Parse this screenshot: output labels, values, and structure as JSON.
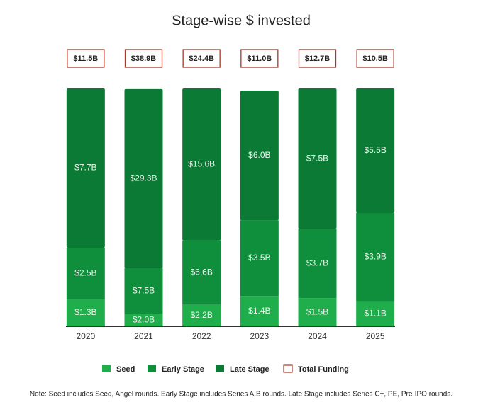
{
  "chart_data": {
    "type": "bar",
    "title": "Stage-wise $ invested",
    "categories": [
      "2020",
      "2021",
      "2022",
      "2023",
      "2024",
      "2025"
    ],
    "stacked": "percent",
    "series": [
      {
        "name": "Seed",
        "color": "#1fae4b",
        "values": [
          1.3,
          2.0,
          2.2,
          1.4,
          1.5,
          1.1
        ],
        "value_labels": [
          "$1.3B",
          "$2.0B",
          "$2.2B",
          "$1.4B",
          "$1.5B",
          "$1.1B"
        ]
      },
      {
        "name": "Early Stage",
        "color": "#0f8f3b",
        "values": [
          2.5,
          7.5,
          6.6,
          3.5,
          3.7,
          3.9
        ],
        "value_labels": [
          "$2.5B",
          "$7.5B",
          "$6.6B",
          "$3.5B",
          "$3.7B",
          "$3.9B"
        ]
      },
      {
        "name": "Late Stage",
        "color": "#0b7a34",
        "values": [
          7.7,
          29.3,
          15.6,
          6.0,
          7.5,
          5.5
        ],
        "value_labels": [
          "$7.7B",
          "$29.3B",
          "$15.6B",
          "$6.0B",
          "$7.5B",
          "$5.5B"
        ]
      }
    ],
    "total": {
      "name": "Total Funding",
      "color": "#a8382c",
      "values": [
        11.5,
        38.9,
        24.4,
        11.0,
        12.7,
        10.5
      ],
      "value_labels": [
        "$11.5B",
        "$38.9B",
        "$24.4B",
        "$11.0B",
        "$12.7B",
        "$10.5B"
      ]
    },
    "note": "Note: Seed includes Seed, Angel rounds. Early Stage includes Series A,B rounds. Late Stage includes Series C+, PE, Pre-IPO rounds."
  }
}
